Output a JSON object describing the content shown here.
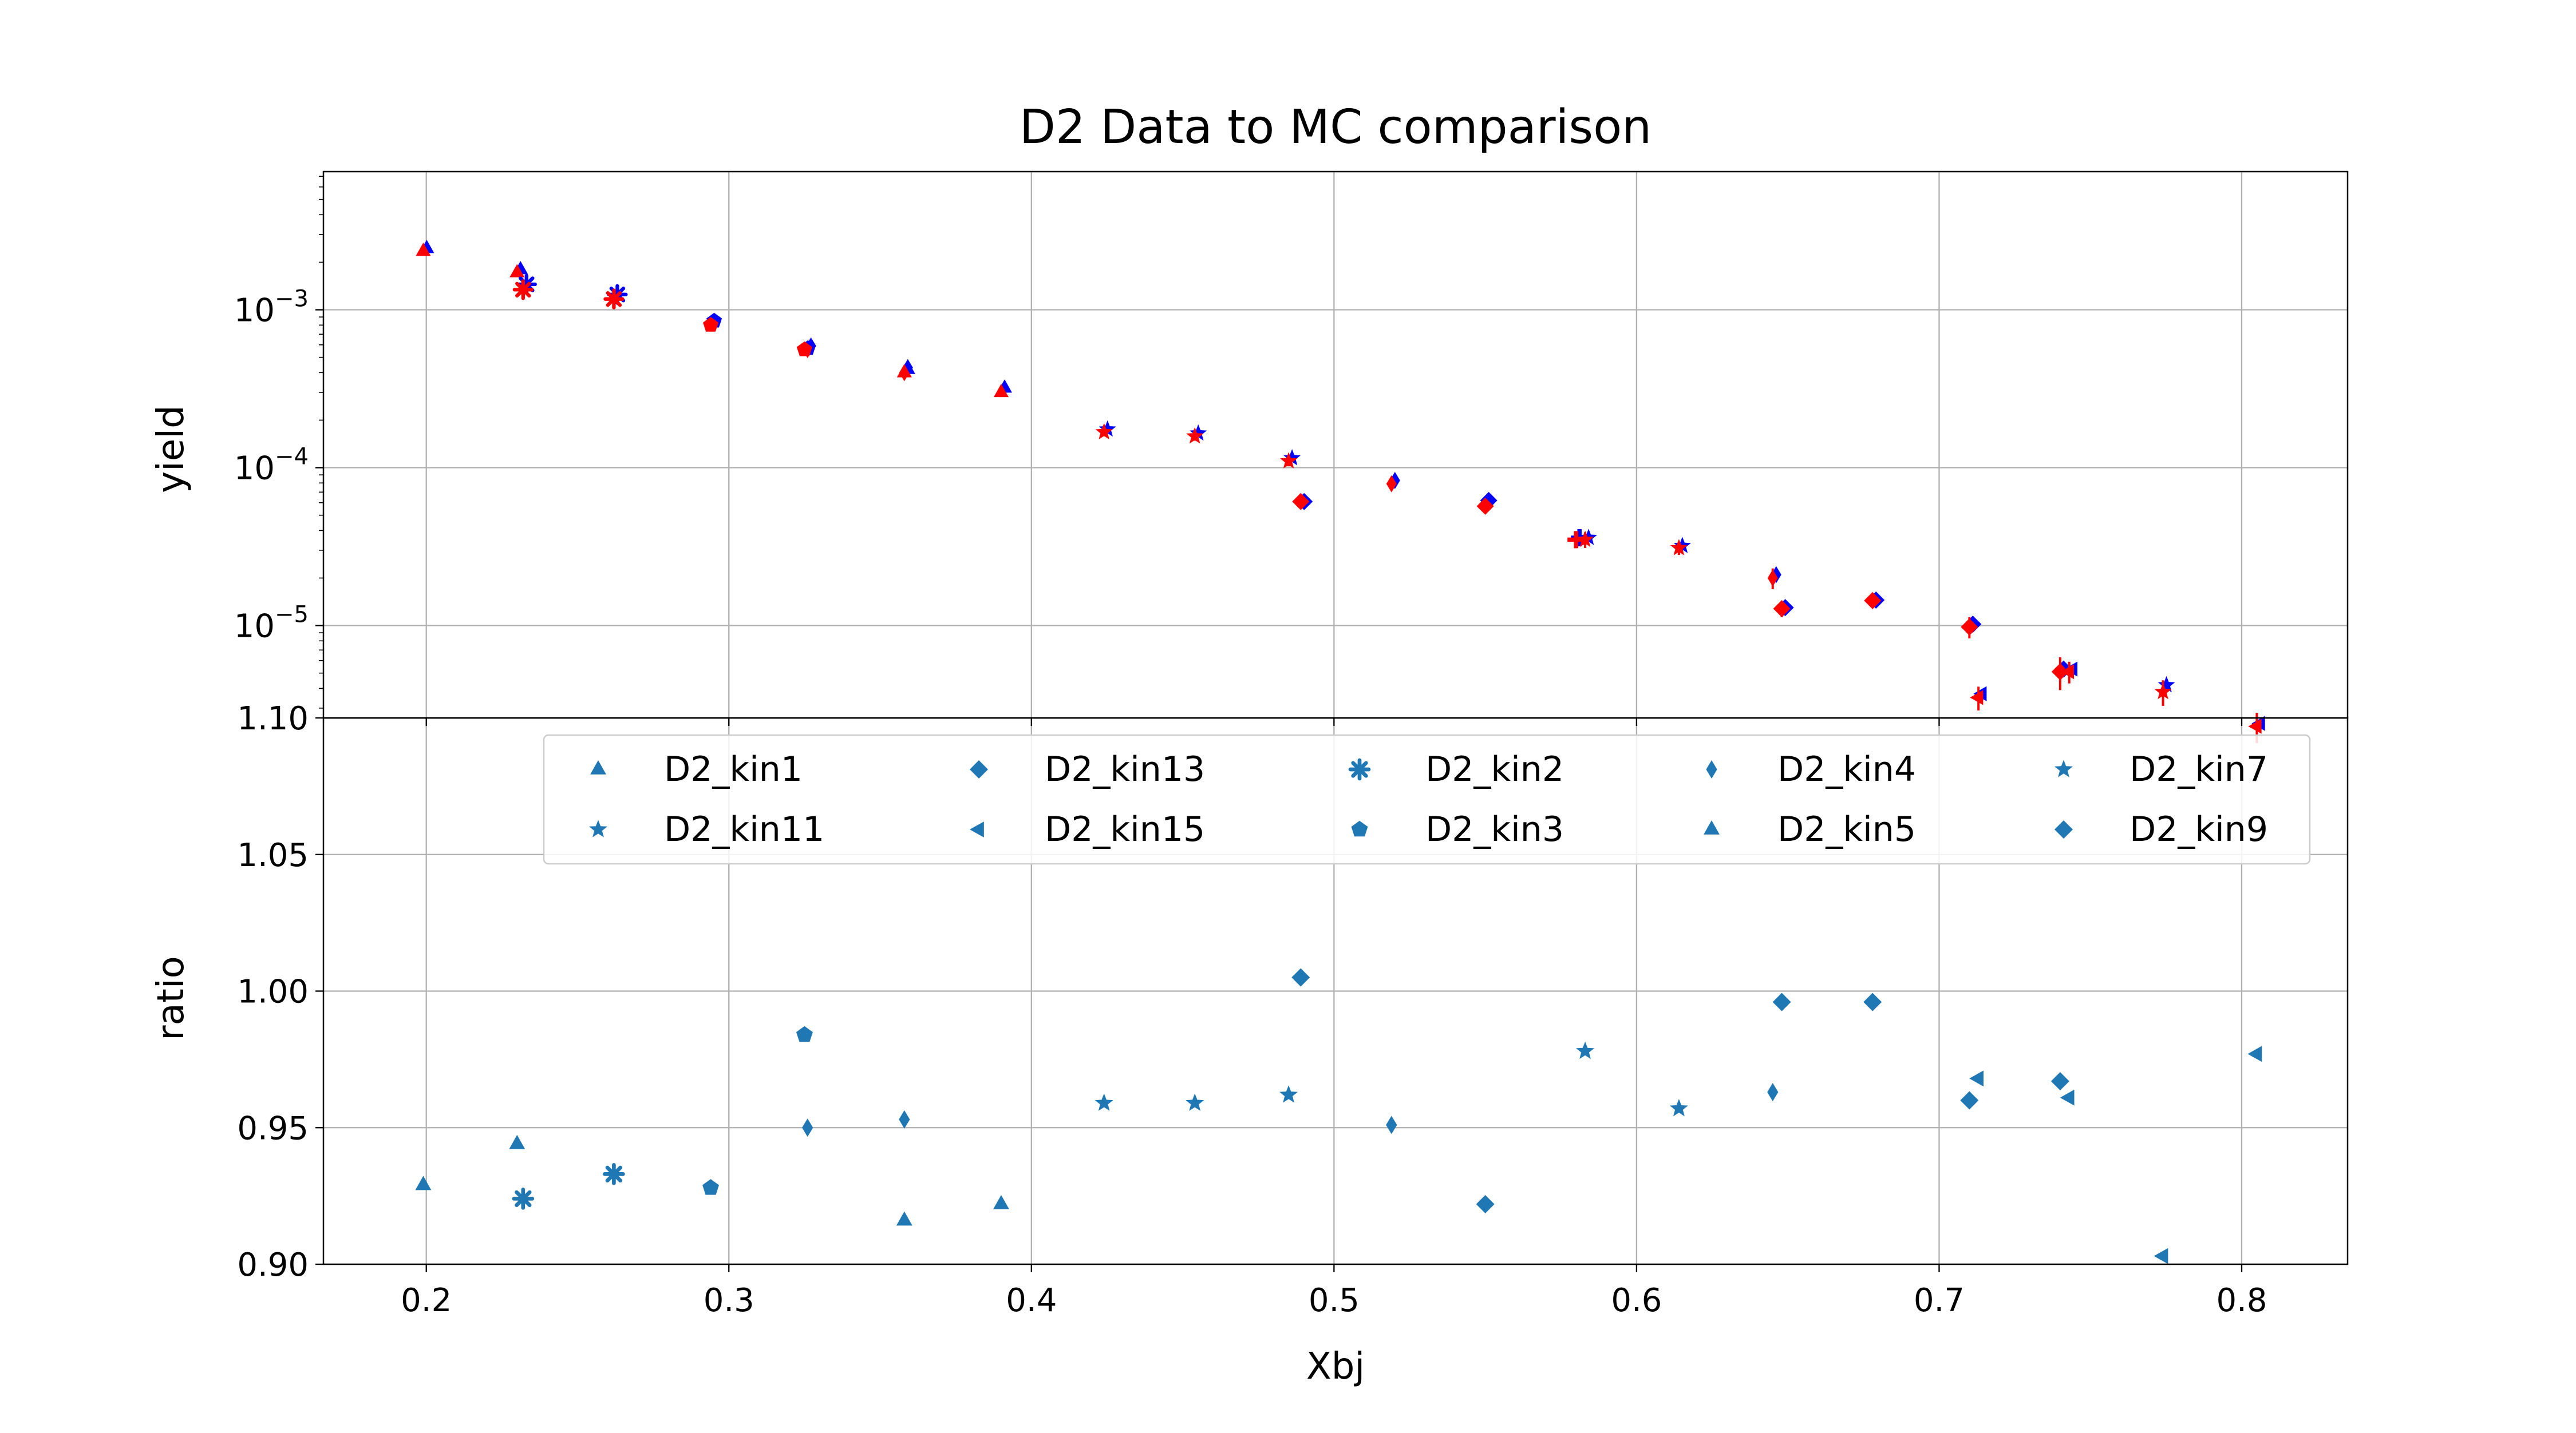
{
  "chart_data": {
    "type": "scatter",
    "title": "D2 Data to MC comparison",
    "xlabel": "Xbj",
    "x_ticks": [
      "0.2",
      "0.3",
      "0.4",
      "0.5",
      "0.6",
      "0.7",
      "0.8"
    ],
    "xlim": [
      0.166,
      0.835
    ],
    "colors": {
      "mc": "#0000ff",
      "data": "#ff0000",
      "ratio": "#1f77b4"
    },
    "grid": true,
    "top_panel": {
      "ylabel": "yield",
      "yscale": "log",
      "ylim": [
        2.6e-06,
        0.0075
      ],
      "y_ticks": [
        {
          "value": 0.001,
          "base": "10",
          "exp": "−3"
        },
        {
          "value": 0.0001,
          "base": "10",
          "exp": "−4"
        },
        {
          "value": 1e-05,
          "base": "10",
          "exp": "−5"
        }
      ],
      "series_note": "blue = MC, red = data (with error bars)",
      "points": [
        {
          "x": 0.199,
          "mc": 0.00245,
          "data": 0.00235,
          "err": 0.00012,
          "marker": "triangle-up"
        },
        {
          "x": 0.23,
          "mc": 0.0018,
          "data": 0.00172,
          "err": 9e-05,
          "marker": "triangle-up"
        },
        {
          "x": 0.232,
          "mc": 0.00145,
          "data": 0.00134,
          "err": 8e-05,
          "marker": "asterisk"
        },
        {
          "x": 0.262,
          "mc": 0.00125,
          "data": 0.00117,
          "err": 7e-05,
          "marker": "asterisk"
        },
        {
          "x": 0.294,
          "mc": 0.00085,
          "data": 0.0008,
          "err": 5e-05,
          "marker": "pentagon"
        },
        {
          "x": 0.326,
          "mc": 0.00059,
          "data": 0.00056,
          "err": 3e-05,
          "marker": "thin-diamond"
        },
        {
          "x": 0.325,
          "mc": 0.00057,
          "data": 0.00056,
          "err": 3e-05,
          "marker": "pentagon"
        },
        {
          "x": 0.358,
          "mc": 0.00043,
          "data": 0.0004,
          "err": 3e-05,
          "marker": "thin-diamond"
        },
        {
          "x": 0.358,
          "mc": 0.00042,
          "data": 0.0004,
          "err": 3e-05,
          "marker": "triangle-up"
        },
        {
          "x": 0.39,
          "mc": 0.00032,
          "data": 0.0003,
          "err": 2e-05,
          "marker": "triangle-up"
        },
        {
          "x": 0.424,
          "mc": 0.000175,
          "data": 0.000168,
          "err": 1e-05,
          "marker": "star"
        },
        {
          "x": 0.454,
          "mc": 0.000165,
          "data": 0.000158,
          "err": 1e-05,
          "marker": "star"
        },
        {
          "x": 0.485,
          "mc": 0.000115,
          "data": 0.00011,
          "err": 8e-06,
          "marker": "star"
        },
        {
          "x": 0.489,
          "mc": 6.1e-05,
          "data": 6.1e-05,
          "err": 4e-06,
          "marker": "diamond"
        },
        {
          "x": 0.519,
          "mc": 8.3e-05,
          "data": 7.9e-05,
          "err": 5e-06,
          "marker": "thin-diamond"
        },
        {
          "x": 0.55,
          "mc": 6.2e-05,
          "data": 5.7e-05,
          "err": 4e-06,
          "marker": "diamond"
        },
        {
          "x": 0.58,
          "mc": 3.6e-05,
          "data": 3.5e-05,
          "err": 4e-06,
          "marker": "plus"
        },
        {
          "x": 0.583,
          "mc": 3.6e-05,
          "data": 3.5e-05,
          "err": 4e-06,
          "marker": "star"
        },
        {
          "x": 0.614,
          "mc": 3.2e-05,
          "data": 3.1e-05,
          "err": 3e-06,
          "marker": "star"
        },
        {
          "x": 0.645,
          "mc": 2.1e-05,
          "data": 2e-05,
          "err": 3e-06,
          "marker": "thin-diamond"
        },
        {
          "x": 0.648,
          "mc": 1.3e-05,
          "data": 1.28e-05,
          "err": 1.5e-06,
          "marker": "diamond"
        },
        {
          "x": 0.678,
          "mc": 1.45e-05,
          "data": 1.44e-05,
          "err": 1.5e-06,
          "marker": "diamond"
        },
        {
          "x": 0.71,
          "mc": 1.02e-05,
          "data": 9.8e-06,
          "err": 1.5e-06,
          "marker": "diamond"
        },
        {
          "x": 0.713,
          "mc": 3.7e-06,
          "data": 3.5e-06,
          "err": 6e-07,
          "marker": "triangle-left"
        },
        {
          "x": 0.74,
          "mc": 5.3e-06,
          "data": 5.1e-06,
          "err": 1.2e-06,
          "marker": "diamond"
        },
        {
          "x": 0.743,
          "mc": 5.3e-06,
          "data": 5.1e-06,
          "err": 8e-07,
          "marker": "triangle-left"
        },
        {
          "x": 0.774,
          "mc": 4.2e-06,
          "data": 3.8e-06,
          "err": 7e-07,
          "marker": "star"
        },
        {
          "x": 0.805,
          "mc": 2.4e-06,
          "data": 2.3e-06,
          "err": 5e-07,
          "marker": "triangle-left"
        }
      ]
    },
    "bottom_panel": {
      "ylabel": "ratio",
      "ylim": [
        0.9,
        1.1
      ],
      "y_ticks": [
        "0.90",
        "0.95",
        "1.00",
        "1.05",
        "1.10"
      ],
      "legend_position": "top",
      "legend": [
        {
          "label": "D2_kin1",
          "marker": "triangle-up"
        },
        {
          "label": "D2_kin11",
          "marker": "star"
        },
        {
          "label": "D2_kin13",
          "marker": "diamond"
        },
        {
          "label": "D2_kin15",
          "marker": "triangle-left"
        },
        {
          "label": "D2_kin2",
          "marker": "asterisk"
        },
        {
          "label": "D2_kin3",
          "marker": "pentagon"
        },
        {
          "label": "D2_kin4",
          "marker": "thin-diamond"
        },
        {
          "label": "D2_kin5",
          "marker": "triangle-up"
        },
        {
          "label": "D2_kin7",
          "marker": "star"
        },
        {
          "label": "D2_kin9",
          "marker": "diamond"
        }
      ],
      "points": [
        {
          "x": 0.199,
          "y": 0.929,
          "marker": "triangle-up"
        },
        {
          "x": 0.23,
          "y": 0.944,
          "marker": "triangle-up"
        },
        {
          "x": 0.232,
          "y": 0.924,
          "marker": "asterisk"
        },
        {
          "x": 0.262,
          "y": 0.933,
          "marker": "asterisk"
        },
        {
          "x": 0.294,
          "y": 0.928,
          "marker": "pentagon"
        },
        {
          "x": 0.325,
          "y": 0.984,
          "marker": "pentagon"
        },
        {
          "x": 0.326,
          "y": 0.95,
          "marker": "thin-diamond"
        },
        {
          "x": 0.358,
          "y": 0.953,
          "marker": "thin-diamond"
        },
        {
          "x": 0.358,
          "y": 0.916,
          "marker": "triangle-up"
        },
        {
          "x": 0.39,
          "y": 0.922,
          "marker": "triangle-up"
        },
        {
          "x": 0.424,
          "y": 0.959,
          "marker": "star"
        },
        {
          "x": 0.454,
          "y": 0.959,
          "marker": "star"
        },
        {
          "x": 0.485,
          "y": 0.962,
          "marker": "star"
        },
        {
          "x": 0.489,
          "y": 1.005,
          "marker": "diamond"
        },
        {
          "x": 0.519,
          "y": 0.951,
          "marker": "thin-diamond"
        },
        {
          "x": 0.55,
          "y": 0.922,
          "marker": "diamond"
        },
        {
          "x": 0.583,
          "y": 0.978,
          "marker": "star"
        },
        {
          "x": 0.614,
          "y": 0.957,
          "marker": "star"
        },
        {
          "x": 0.645,
          "y": 0.963,
          "marker": "thin-diamond"
        },
        {
          "x": 0.648,
          "y": 0.996,
          "marker": "diamond"
        },
        {
          "x": 0.678,
          "y": 0.996,
          "marker": "diamond"
        },
        {
          "x": 0.71,
          "y": 0.96,
          "marker": "diamond"
        },
        {
          "x": 0.713,
          "y": 0.968,
          "marker": "triangle-left"
        },
        {
          "x": 0.74,
          "y": 0.967,
          "marker": "diamond"
        },
        {
          "x": 0.743,
          "y": 0.961,
          "marker": "triangle-left"
        },
        {
          "x": 0.774,
          "y": 0.903,
          "marker": "triangle-left"
        },
        {
          "x": 0.805,
          "y": 0.977,
          "marker": "triangle-left"
        }
      ]
    }
  }
}
